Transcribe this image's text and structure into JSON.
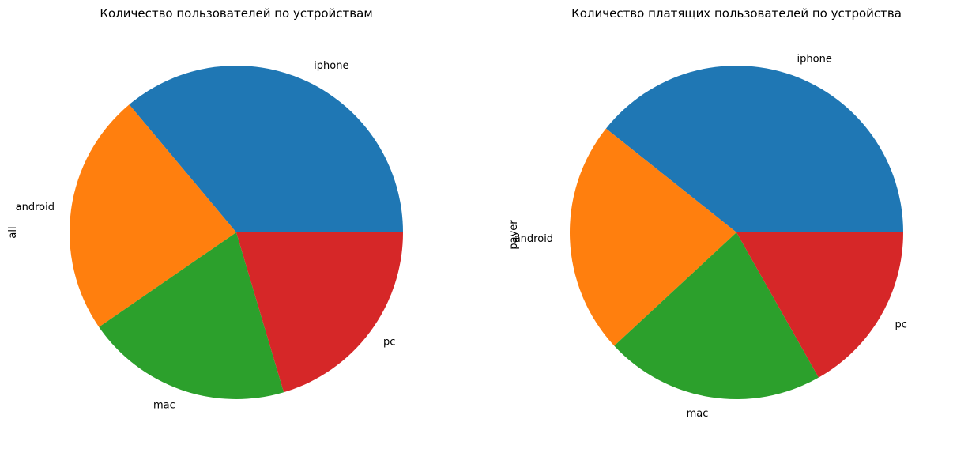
{
  "chart_data": [
    {
      "type": "pie",
      "title": "Количество пользователей по устройствам",
      "ylabel": "all",
      "categories": [
        "iphone",
        "android",
        "mac",
        "pc"
      ],
      "values": [
        36.1,
        23.5,
        20.0,
        20.4
      ],
      "start_angle_deg": 0,
      "direction": "counterclockwise",
      "colors": [
        "#1f77b4",
        "#ff7f0e",
        "#2ca02c",
        "#d62728"
      ]
    },
    {
      "type": "pie",
      "title": "Количество платящих пользователей по устройства",
      "ylabel": "payer",
      "categories": [
        "iphone",
        "android",
        "mac",
        "pc"
      ],
      "values": [
        39.3,
        22.6,
        21.3,
        16.8
      ],
      "start_angle_deg": 0,
      "direction": "counterclockwise",
      "colors": [
        "#1f77b4",
        "#ff7f0e",
        "#2ca02c",
        "#d62728"
      ]
    }
  ]
}
